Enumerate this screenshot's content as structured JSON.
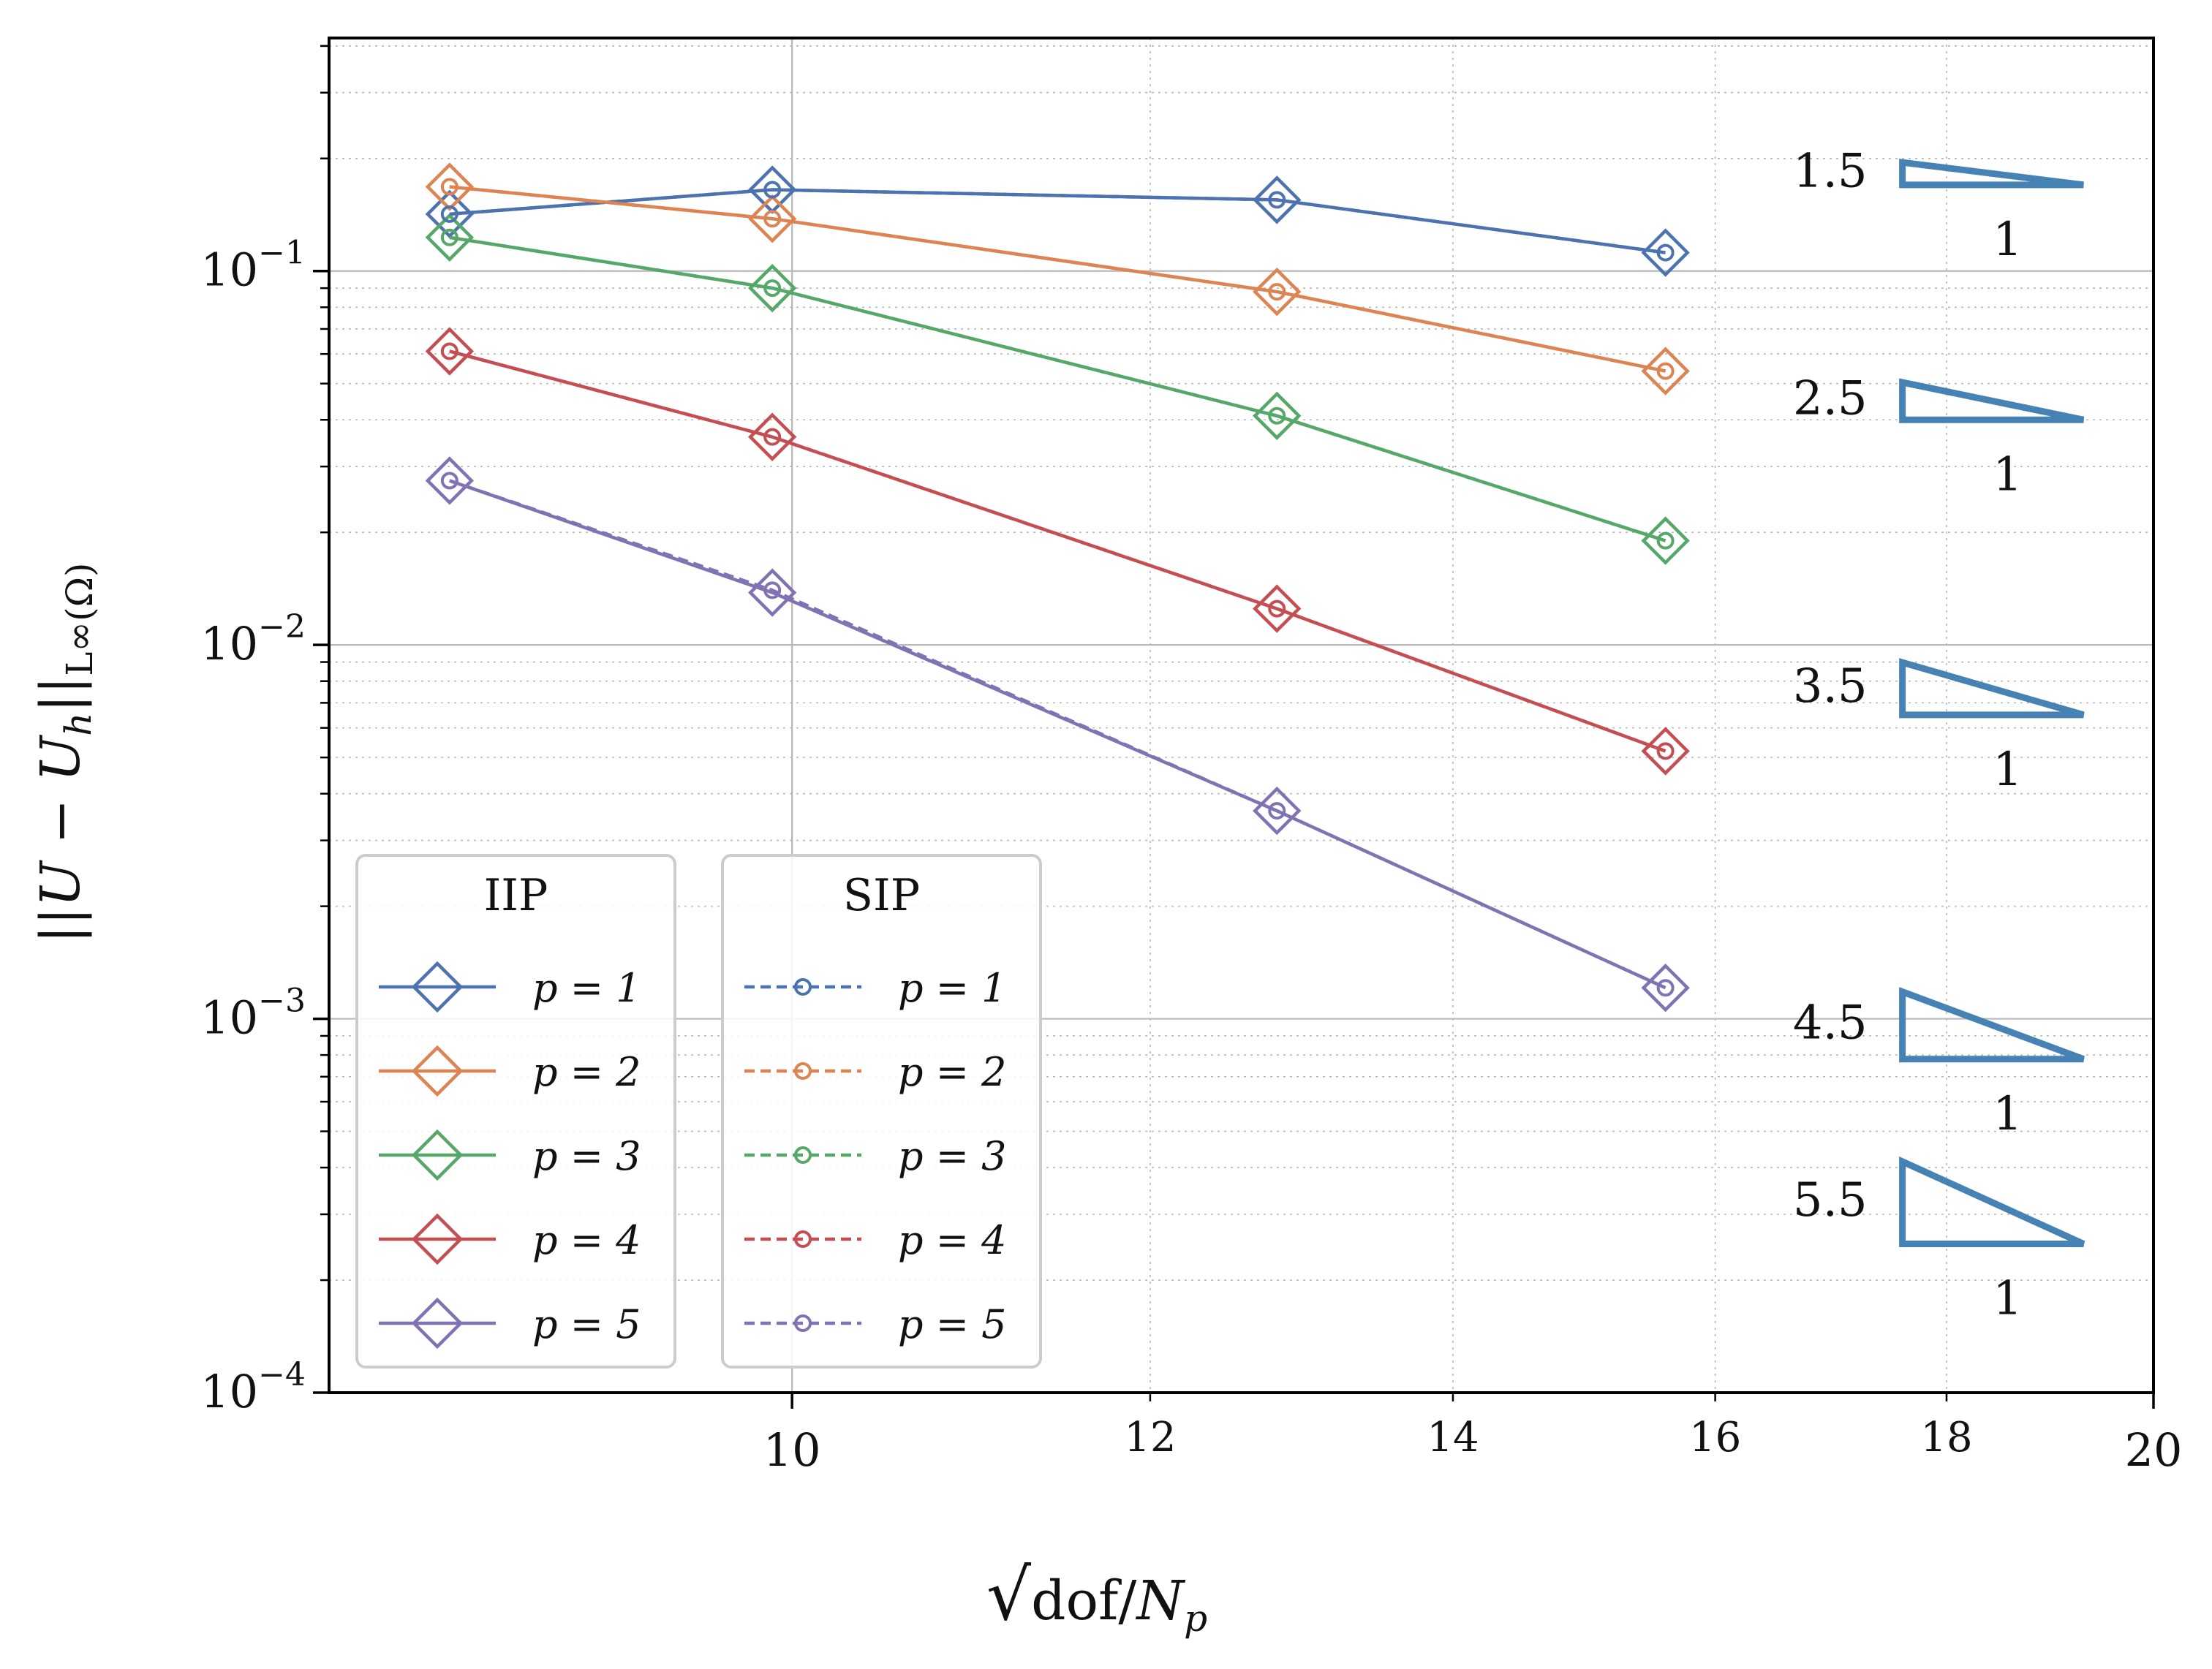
{
  "chart_data": {
    "type": "line",
    "xscale": "log",
    "yscale": "log",
    "xlim": [
      7.9,
      20.0
    ],
    "ylim": [
      0.0001,
      0.42
    ],
    "xlabel": "√dof/N_p",
    "xlabel_parts": {
      "sqrt": "√",
      "text": "dof/",
      "N": "N",
      "sub": "p"
    },
    "ylabel": "||U − U_h||_{L∞(Ω)}",
    "ylabel_parts": {
      "prefix": "||U − U",
      "sub_h": "h",
      "mid": "||",
      "sub_norm": "L∞(Ω)"
    },
    "xticks": [
      {
        "value": 10,
        "label": "10",
        "major": true
      },
      {
        "value": 12,
        "label": "12",
        "major": false
      },
      {
        "value": 14,
        "label": "14",
        "major": false
      },
      {
        "value": 16,
        "label": "16",
        "major": false
      },
      {
        "value": 18,
        "label": "18",
        "major": false
      },
      {
        "value": 20,
        "label": "20",
        "major": true
      }
    ],
    "yticks": [
      {
        "value": 0.1,
        "base": "10",
        "exp": "−1"
      },
      {
        "value": 0.01,
        "base": "10",
        "exp": "−2"
      },
      {
        "value": 0.001,
        "base": "10",
        "exp": "−3"
      },
      {
        "value": 0.0001,
        "base": "10",
        "exp": "−4"
      }
    ],
    "x": [
      8.4,
      9.9,
      12.8,
      15.6
    ],
    "series": [
      {
        "name": "IIP p = 1",
        "method": "IIP",
        "p": 1,
        "color": "#4c72b0",
        "values": [
          0.142,
          0.165,
          0.155,
          0.112
        ]
      },
      {
        "name": "IIP p = 2",
        "method": "IIP",
        "p": 2,
        "color": "#dd8452",
        "values": [
          0.168,
          0.138,
          0.088,
          0.054
        ]
      },
      {
        "name": "IIP p = 3",
        "method": "IIP",
        "p": 3,
        "color": "#55a868",
        "values": [
          0.123,
          0.09,
          0.041,
          0.019
        ]
      },
      {
        "name": "IIP p = 4",
        "method": "IIP",
        "p": 4,
        "color": "#c44e52",
        "values": [
          0.061,
          0.036,
          0.0125,
          0.0052
        ]
      },
      {
        "name": "IIP p = 5",
        "method": "IIP",
        "p": 5,
        "color": "#8172b3",
        "values": [
          0.0275,
          0.0138,
          0.0036,
          0.00121
        ]
      },
      {
        "name": "SIP p = 1",
        "method": "SIP",
        "p": 1,
        "color": "#4c72b0",
        "values": [
          0.142,
          0.165,
          0.155,
          0.112
        ]
      },
      {
        "name": "SIP p = 2",
        "method": "SIP",
        "p": 2,
        "color": "#dd8452",
        "values": [
          0.168,
          0.138,
          0.088,
          0.054
        ]
      },
      {
        "name": "SIP p = 3",
        "method": "SIP",
        "p": 3,
        "color": "#55a868",
        "values": [
          0.123,
          0.09,
          0.041,
          0.019
        ]
      },
      {
        "name": "SIP p = 4",
        "method": "SIP",
        "p": 4,
        "color": "#c44e52",
        "values": [
          0.061,
          0.036,
          0.0125,
          0.0052
        ]
      },
      {
        "name": "SIP p = 5",
        "method": "SIP",
        "p": 5,
        "color": "#8172b3",
        "values": [
          0.0275,
          0.014,
          0.0036,
          0.00121
        ]
      }
    ],
    "legends": [
      {
        "title": "IIP",
        "linestyle": "solid",
        "marker": "diamond",
        "entries": [
          {
            "label": "p = 1",
            "color": "#4c72b0"
          },
          {
            "label": "p = 2",
            "color": "#dd8452"
          },
          {
            "label": "p = 3",
            "color": "#55a868"
          },
          {
            "label": "p = 4",
            "color": "#c44e52"
          },
          {
            "label": "p = 5",
            "color": "#8172b3"
          }
        ]
      },
      {
        "title": "SIP",
        "linestyle": "dashed",
        "marker": "circle",
        "entries": [
          {
            "label": "p = 1",
            "color": "#4c72b0"
          },
          {
            "label": "p = 2",
            "color": "#dd8452"
          },
          {
            "label": "p = 3",
            "color": "#55a868"
          },
          {
            "label": "p = 4",
            "color": "#c44e52"
          },
          {
            "label": "p = 5",
            "color": "#8172b3"
          }
        ]
      }
    ],
    "legend_placement": "lower-left",
    "slope_triangles": {
      "color": "#4682b4",
      "x_range": [
        17.6,
        19.3
      ],
      "items": [
        {
          "rate": "1.5",
          "run": "1",
          "y_bottom": 0.17
        },
        {
          "rate": "2.5",
          "run": "1",
          "y_bottom": 0.04
        },
        {
          "rate": "3.5",
          "run": "1",
          "y_bottom": 0.0065
        },
        {
          "rate": "4.5",
          "run": "1",
          "y_bottom": 0.00078
        },
        {
          "rate": "5.5",
          "run": "1",
          "y_bottom": 0.00025
        }
      ]
    },
    "grid": true
  }
}
